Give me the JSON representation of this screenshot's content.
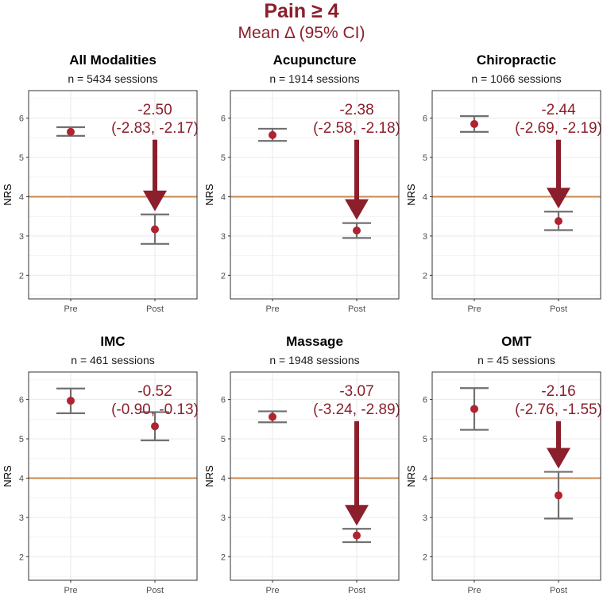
{
  "title": "Pain ≥ 4",
  "subtitle": "Mean Δ (95% CI)",
  "colors": {
    "accent": "#8b1f2b",
    "point": "#b0232f",
    "errorbar": "#707070",
    "threshold": "#c8884f",
    "grid": "#ebebeb",
    "panel_border": "#333333"
  },
  "chart_data": [
    {
      "type": "scatter",
      "title": "All Modalities",
      "subtitle": "n = 5434 sessions",
      "ylabel": "NRS",
      "categories": [
        "Pre",
        "Post"
      ],
      "yticks": [
        2,
        3,
        4,
        5,
        6
      ],
      "ylim": [
        1.4,
        6.7
      ],
      "threshold": 4,
      "pre": {
        "mean": 5.65,
        "lo": 5.55,
        "hi": 5.77
      },
      "post": {
        "mean": 3.17,
        "lo": 2.8,
        "hi": 3.55
      },
      "delta_label": "-2.50",
      "ci_label": "(-2.83, -2.17)",
      "arrow": true
    },
    {
      "type": "scatter",
      "title": "Acupuncture",
      "subtitle": "n = 1914 sessions",
      "ylabel": "NRS",
      "categories": [
        "Pre",
        "Post"
      ],
      "yticks": [
        2,
        3,
        4,
        5,
        6
      ],
      "ylim": [
        1.4,
        6.7
      ],
      "threshold": 4,
      "pre": {
        "mean": 5.57,
        "lo": 5.42,
        "hi": 5.73
      },
      "post": {
        "mean": 3.14,
        "lo": 2.95,
        "hi": 3.33
      },
      "delta_label": "-2.38",
      "ci_label": "(-2.58, -2.18)",
      "arrow": true
    },
    {
      "type": "scatter",
      "title": "Chiropractic",
      "subtitle": "n = 1066 sessions",
      "ylabel": "NRS",
      "categories": [
        "Pre",
        "Post"
      ],
      "yticks": [
        2,
        3,
        4,
        5,
        6
      ],
      "ylim": [
        1.4,
        6.7
      ],
      "threshold": 4,
      "pre": {
        "mean": 5.85,
        "lo": 5.65,
        "hi": 6.05
      },
      "post": {
        "mean": 3.38,
        "lo": 3.15,
        "hi": 3.62
      },
      "delta_label": "-2.44",
      "ci_label": "(-2.69, -2.19)",
      "arrow": true
    },
    {
      "type": "scatter",
      "title": "IMC",
      "subtitle": "n = 461 sessions",
      "ylabel": "NRS",
      "categories": [
        "Pre",
        "Post"
      ],
      "yticks": [
        2,
        3,
        4,
        5,
        6
      ],
      "ylim": [
        1.4,
        6.7
      ],
      "threshold": 4,
      "pre": {
        "mean": 5.97,
        "lo": 5.65,
        "hi": 6.28
      },
      "post": {
        "mean": 5.32,
        "lo": 4.96,
        "hi": 5.68
      },
      "delta_label": "-0.52",
      "ci_label": "(-0.90, -0.13)",
      "arrow": false
    },
    {
      "type": "scatter",
      "title": "Massage",
      "subtitle": "n = 1948 sessions",
      "ylabel": "NRS",
      "categories": [
        "Pre",
        "Post"
      ],
      "yticks": [
        2,
        3,
        4,
        5,
        6
      ],
      "ylim": [
        1.4,
        6.7
      ],
      "threshold": 4,
      "pre": {
        "mean": 5.56,
        "lo": 5.42,
        "hi": 5.7
      },
      "post": {
        "mean": 2.54,
        "lo": 2.37,
        "hi": 2.71
      },
      "delta_label": "-3.07",
      "ci_label": "(-3.24, -2.89)",
      "arrow": true
    },
    {
      "type": "scatter",
      "title": "OMT",
      "subtitle": "n = 45 sessions",
      "ylabel": "NRS",
      "categories": [
        "Pre",
        "Post"
      ],
      "yticks": [
        2,
        3,
        4,
        5,
        6
      ],
      "ylim": [
        1.4,
        6.7
      ],
      "threshold": 4,
      "pre": {
        "mean": 5.76,
        "lo": 5.23,
        "hi": 6.29
      },
      "post": {
        "mean": 3.56,
        "lo": 2.97,
        "hi": 4.16
      },
      "delta_label": "-2.16",
      "ci_label": "(-2.76, -1.55)",
      "arrow": true
    }
  ]
}
